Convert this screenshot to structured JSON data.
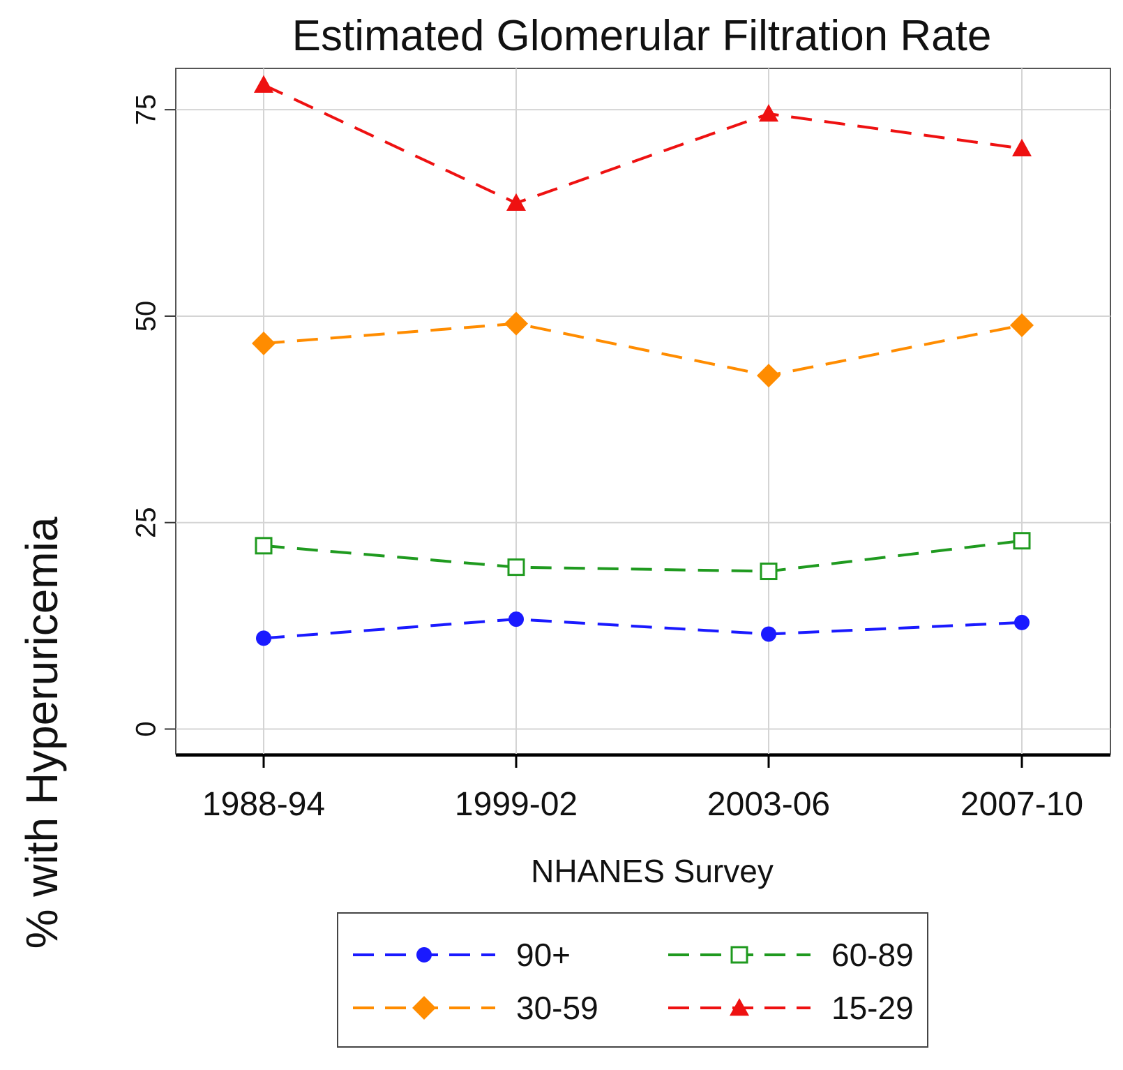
{
  "chart_data": {
    "type": "line",
    "title": "Estimated Glomerular Filtration Rate",
    "xlabel": "NHANES Survey",
    "ylabel": "% with Hyperuricemia",
    "categories": [
      "1988-94",
      "1999-02",
      "2003-06",
      "2007-10"
    ],
    "yticks": [
      "0",
      "25",
      "50",
      "75"
    ],
    "ylim": [
      -3,
      80
    ],
    "grid": true,
    "legend_position": "bottom",
    "series": [
      {
        "name": "90+",
        "values": [
          11,
          13.3,
          11.5,
          12.9
        ],
        "color": "#1a1aff",
        "marker": "circle"
      },
      {
        "name": "60-89",
        "values": [
          22.2,
          19.6,
          19.1,
          22.8
        ],
        "color": "#1f9a1f",
        "marker": "open-square"
      },
      {
        "name": "30-59",
        "values": [
          46.7,
          49.1,
          42.8,
          48.9
        ],
        "color": "#ff8c00",
        "marker": "diamond"
      },
      {
        "name": "15-29",
        "values": [
          78,
          63.7,
          74.5,
          70.3
        ],
        "color": "#ee1111",
        "marker": "triangle"
      }
    ]
  }
}
